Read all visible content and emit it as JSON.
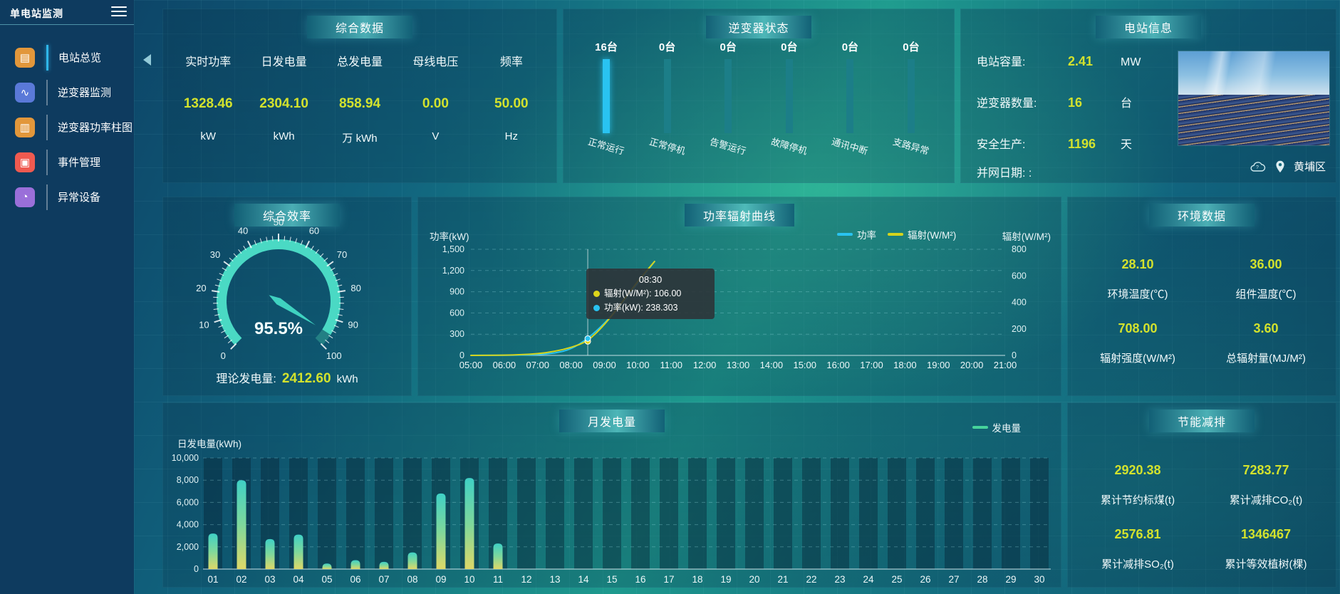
{
  "app": {
    "title": "单电站监测"
  },
  "colors": {
    "accent_yellow": "#d3e22d",
    "accent_cyan": "#29c3f1",
    "gauge_teal": "#4ad9c4"
  },
  "sidebar": {
    "items": [
      {
        "id": "station-overview",
        "label": "电站总览",
        "icon": "▤",
        "color": "#e2973b",
        "active": true
      },
      {
        "id": "inverter-monitor",
        "label": "逆变器监测",
        "icon": "∿",
        "color": "#5a79d8",
        "active": false
      },
      {
        "id": "inverter-power-bars",
        "label": "逆变器功率柱图",
        "icon": "▥",
        "color": "#e2973b",
        "active": false
      },
      {
        "id": "event-management",
        "label": "事件管理",
        "icon": "▣",
        "color": "#ef5a50",
        "active": false
      },
      {
        "id": "abnormal-devices",
        "label": "异常设备",
        "icon": "◔",
        "color": "#9a6fd9",
        "active": false
      }
    ]
  },
  "summary": {
    "title": "综合数据",
    "metrics": [
      {
        "label": "实时功率",
        "value": "1328.46",
        "unit": "kW"
      },
      {
        "label": "日发电量",
        "value": "2304.10",
        "unit": "kWh"
      },
      {
        "label": "总发电量",
        "value": "858.94",
        "unit": "万 kWh"
      },
      {
        "label": "母线电压",
        "value": "0.00",
        "unit": "V"
      },
      {
        "label": "频率",
        "value": "50.00",
        "unit": "Hz"
      }
    ]
  },
  "inverter_status": {
    "title": "逆变器状态",
    "active_color": "#29c3f1",
    "inactive_color": "#1c7e88",
    "bars": [
      {
        "count": "16台",
        "label": "正常运行",
        "active": true
      },
      {
        "count": "0台",
        "label": "正常停机",
        "active": false
      },
      {
        "count": "0台",
        "label": "告警运行",
        "active": false
      },
      {
        "count": "0台",
        "label": "故障停机",
        "active": false
      },
      {
        "count": "0台",
        "label": "通讯中断",
        "active": false
      },
      {
        "count": "0台",
        "label": "支路异常",
        "active": false
      }
    ]
  },
  "station_info": {
    "title": "电站信息",
    "rows": [
      {
        "label": "电站容量:",
        "value": "2.41",
        "unit": "MW"
      },
      {
        "label": "逆变器数量:",
        "value": "16",
        "unit": "台"
      },
      {
        "label": "安全生产:",
        "value": "1196",
        "unit": "天"
      },
      {
        "label": "并网日期:  :",
        "value": "",
        "unit": ""
      }
    ],
    "location": "黄埔区"
  },
  "efficiency": {
    "title": "综合效率",
    "footer_label": "理论发电量:",
    "footer_value": "2412.60",
    "footer_unit": "kWh"
  },
  "power_curve": {
    "title": "功率辐射曲线",
    "left_axis_title": "功率(kW)",
    "right_axis_title": "辐射(W/M²)",
    "legend": [
      {
        "label": "功率",
        "color": "#29c3f1"
      },
      {
        "label": "辐射(W/M²)",
        "color": "#d6d41c"
      }
    ]
  },
  "environment": {
    "title": "环境数据",
    "metrics": [
      {
        "value": "28.10",
        "label": "环境温度(℃)"
      },
      {
        "value": "36.00",
        "label": "组件温度(℃)"
      },
      {
        "value": "708.00",
        "label": "辐射强度(W/M²)"
      },
      {
        "value": "3.60",
        "label": "总辐射量(MJ/M²)"
      }
    ]
  },
  "monthly": {
    "title": "月发电量",
    "axis_title": "日发电量(kWh)",
    "legend": "发电量",
    "legend_color": "#46d39b"
  },
  "savings": {
    "title": "节能减排",
    "metrics": [
      {
        "value": "2920.38",
        "label": "累计节约标煤(t)"
      },
      {
        "value": "7283.77",
        "label": "累计减排CO₂(t)"
      },
      {
        "value": "2576.81",
        "label": "累计减排SO₂(t)"
      },
      {
        "value": "1346467",
        "label": "累计等效植树(棵)"
      }
    ]
  },
  "chart_data": [
    {
      "type": "gauge",
      "title": "综合效率",
      "min": 0,
      "max": 100,
      "value": 95.5,
      "display": "95.5%",
      "major_ticks": [
        0,
        10,
        20,
        30,
        40,
        50,
        60,
        70,
        80,
        90,
        100
      ],
      "band_color": "#4ad9c4",
      "remainder_color": "#237f84",
      "needle_color": "#3fd2c0"
    },
    {
      "type": "line",
      "title": "功率辐射曲线",
      "x_labels": [
        "05:00",
        "06:00",
        "07:00",
        "08:00",
        "09:00",
        "10:00",
        "11:00",
        "12:00",
        "13:00",
        "14:00",
        "15:00",
        "16:00",
        "17:00",
        "18:00",
        "19:00",
        "20:00",
        "21:00"
      ],
      "x_range": [
        5,
        21
      ],
      "ylim_left": [
        0,
        1500
      ],
      "ylim_right": [
        0,
        800
      ],
      "left_ticks": [
        "0",
        "300",
        "600",
        "900",
        "1,200",
        "1,500"
      ],
      "right_ticks": [
        "0",
        "200",
        "400",
        "600",
        "800"
      ],
      "series": [
        {
          "name": "功率",
          "unit": "kW",
          "axis": "left",
          "color": "#29c3f1",
          "x": [
            5,
            5.5,
            6,
            6.5,
            7,
            7.5,
            8,
            8.5,
            9,
            9.5,
            10,
            10.5
          ],
          "values": [
            1,
            1,
            2,
            4,
            10,
            30,
            85,
            238.303,
            450,
            720,
            1020,
            1328
          ]
        },
        {
          "name": "辐射",
          "unit": "W/M²",
          "axis": "right",
          "color": "#d6d41c",
          "x": [
            5,
            5.5,
            6,
            6.5,
            7,
            7.5,
            8,
            8.5,
            9,
            9.5,
            10,
            10.5
          ],
          "values": [
            0,
            1,
            2,
            5,
            12,
            30,
            58,
            106,
            230,
            390,
            560,
            708
          ]
        }
      ],
      "hover": {
        "time": "08:30",
        "x": 8.5,
        "entries": [
          {
            "label": "辐射(W/M²)",
            "value": "106.00",
            "color": "#ddd61b",
            "axis": "right",
            "y": 106
          },
          {
            "label": "功率(kW)",
            "value": "238.303",
            "color": "#29c3f1",
            "axis": "left",
            "y": 238.303
          }
        ]
      },
      "legend_position": "top-right",
      "grid": "dashed-horizontal"
    },
    {
      "type": "bar",
      "title": "月发电量",
      "categories": [
        "01",
        "02",
        "03",
        "04",
        "05",
        "06",
        "07",
        "08",
        "09",
        "10",
        "11",
        "12",
        "13",
        "14",
        "15",
        "16",
        "17",
        "18",
        "19",
        "20",
        "21",
        "22",
        "23",
        "24",
        "25",
        "26",
        "27",
        "28",
        "29",
        "30"
      ],
      "values": [
        3200,
        8000,
        2700,
        3100,
        500,
        800,
        650,
        1500,
        6800,
        8200,
        2300,
        0,
        0,
        0,
        0,
        0,
        0,
        0,
        0,
        0,
        0,
        0,
        0,
        0,
        0,
        0,
        0,
        0,
        0,
        0
      ],
      "y_ticks": [
        "0",
        "2,000",
        "4,000",
        "6,000",
        "8,000",
        "10,000"
      ],
      "ylim": [
        0,
        10000
      ],
      "xlabel": "",
      "ylabel": "日发电量(kWh)",
      "legend": "发电量",
      "bar_gradient": [
        "#ded868",
        "#7ed89c",
        "#3fd0c5"
      ],
      "grid": "dashed-horizontal"
    }
  ]
}
